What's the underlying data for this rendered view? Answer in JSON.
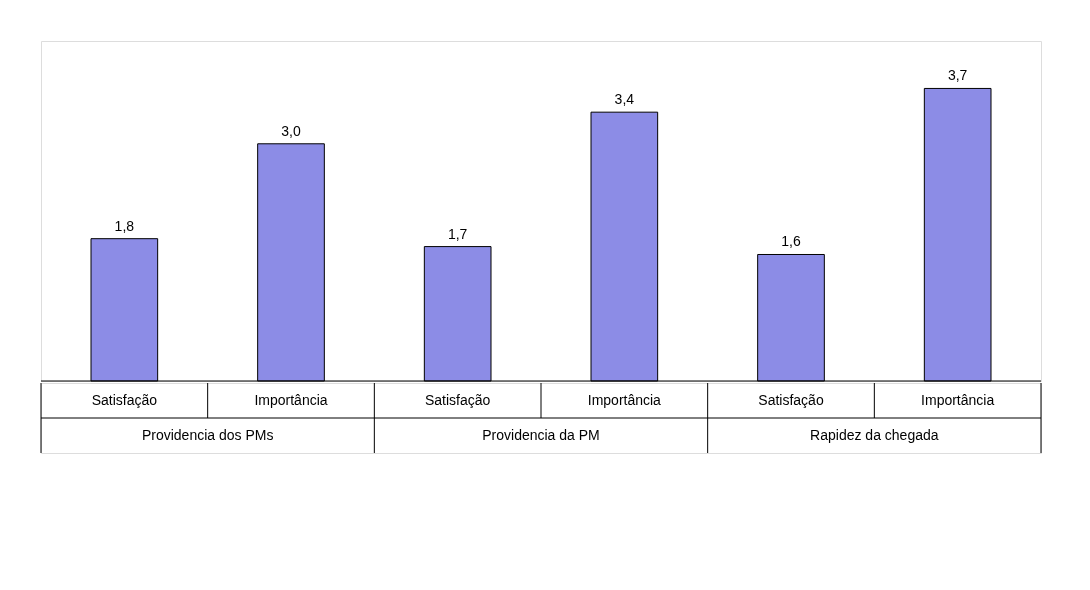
{
  "chart_data": {
    "type": "bar",
    "categories": [
      "Satisfação",
      "Importância",
      "Satisfação",
      "Importância",
      "Satisfação",
      "Importância"
    ],
    "values": [
      1.8,
      3.0,
      1.7,
      3.4,
      1.6,
      3.7
    ],
    "value_labels": [
      "1,8",
      "3,0",
      "1,7",
      "3,4",
      "1,6",
      "3,7"
    ],
    "color": "#8c8ce6",
    "ylim": [
      0,
      4.3
    ],
    "annotations": [
      "Providencia dos PMs",
      "Providencia da PM",
      "Rapidez da chegada"
    ],
    "grid": false
  }
}
